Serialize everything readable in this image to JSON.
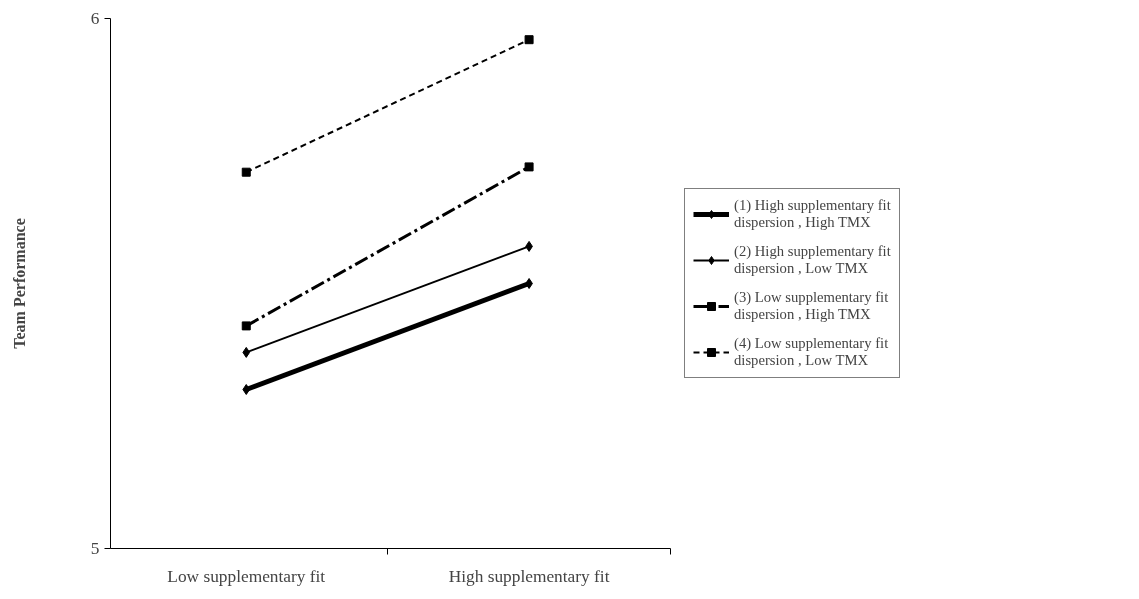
{
  "chart_data": {
    "type": "line",
    "ylabel": "Team Performance",
    "categories": [
      "Low supplementary fit",
      "High supplementary fit"
    ],
    "series": [
      {
        "name": "(1) High supplementary fit\ndispersion , High TMX",
        "color": "#000000",
        "values": [
          5.3,
          5.5
        ],
        "marker": "diamond",
        "line_style": "solid"
      },
      {
        "name": "(2) High supplementary fit\ndispersion , Low TMX",
        "color": "#000000",
        "values": [
          5.37,
          5.57
        ],
        "marker": "diamond",
        "line_style": "solid"
      },
      {
        "name": "(3) Low supplementary fit\ndispersion , High TMX",
        "color": "#000000",
        "values": [
          5.42,
          5.72
        ],
        "marker": "square",
        "line_style": "dashdot"
      },
      {
        "name": "(4) Low supplementary fit\ndispersion , Low TMX",
        "color": "#000000",
        "values": [
          5.71,
          5.96
        ],
        "marker": "square",
        "line_style": "dashed"
      }
    ],
    "ylim": [
      5,
      6
    ],
    "yticks": [
      5,
      6
    ],
    "grid": false,
    "legend": "right"
  }
}
